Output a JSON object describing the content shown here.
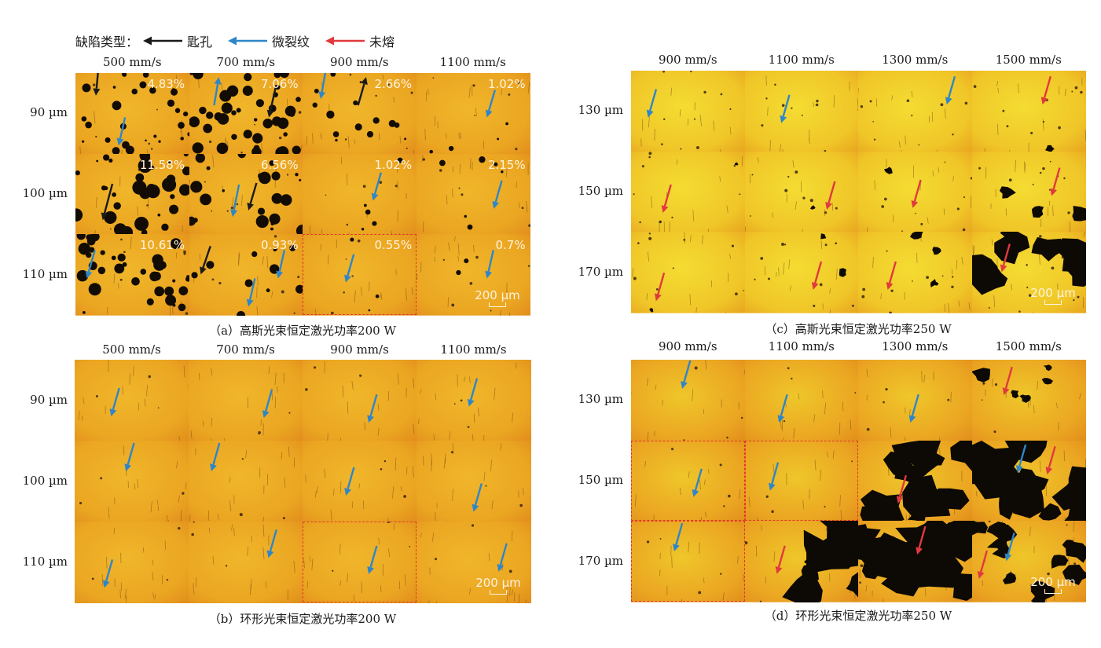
{
  "legend": {
    "title": "缺陷类型：",
    "items": [
      {
        "label": "匙孔",
        "color": "#1a1a1a"
      },
      {
        "label": "微裂纹",
        "color": "#2e86c8"
      },
      {
        "label": "未熔",
        "color": "#e0393e"
      }
    ]
  },
  "panels": {
    "a": {
      "caption": "（a）高斯光束恒定激光功率200 W",
      "columns": [
        "500 mm/s",
        "700 mm/s",
        "900 mm/s",
        "1100 mm/s"
      ],
      "rows": [
        "90 µm",
        "100 µm",
        "110 µm"
      ],
      "porosity": [
        [
          "4.83%",
          "7.06%",
          "2.66%",
          "1.02%"
        ],
        [
          "11.58%",
          "6.56%",
          "1.02%",
          "2.15%"
        ],
        [
          "10.61%",
          "0.93%",
          "0.55%",
          "0.7%"
        ]
      ],
      "scale_label": "200 µm"
    },
    "b": {
      "caption": "（b）环形光束恒定激光功率200 W",
      "columns": [
        "500 mm/s",
        "700 mm/s",
        "900 mm/s",
        "1100 mm/s"
      ],
      "rows": [
        "90 µm",
        "100 µm",
        "110 µm"
      ],
      "scale_label": "200 µm"
    },
    "c": {
      "caption": "（c）高斯光束恒定激光功率250 W",
      "columns": [
        "900 mm/s",
        "1100 mm/s",
        "1300 mm/s",
        "1500 mm/s"
      ],
      "rows": [
        "130 µm",
        "150 µm",
        "170 µm"
      ],
      "scale_label": "200 µm"
    },
    "d": {
      "caption": "（d）环形光束恒定激光功率250 W",
      "columns": [
        "900 mm/s",
        "1100 mm/s",
        "1300 mm/s",
        "1500 mm/s"
      ],
      "rows": [
        "130 µm",
        "150 µm",
        "170 µm"
      ],
      "scale_label": "200 µm"
    }
  },
  "colors": {
    "keyhole_arrow": "#1a1a1a",
    "crack_arrow": "#2e86c8",
    "unfused_arrow": "#e0393e",
    "tile_orange": "#e9a020",
    "tile_yellow": "#f1d530",
    "highlight_box": "#e0392b"
  }
}
